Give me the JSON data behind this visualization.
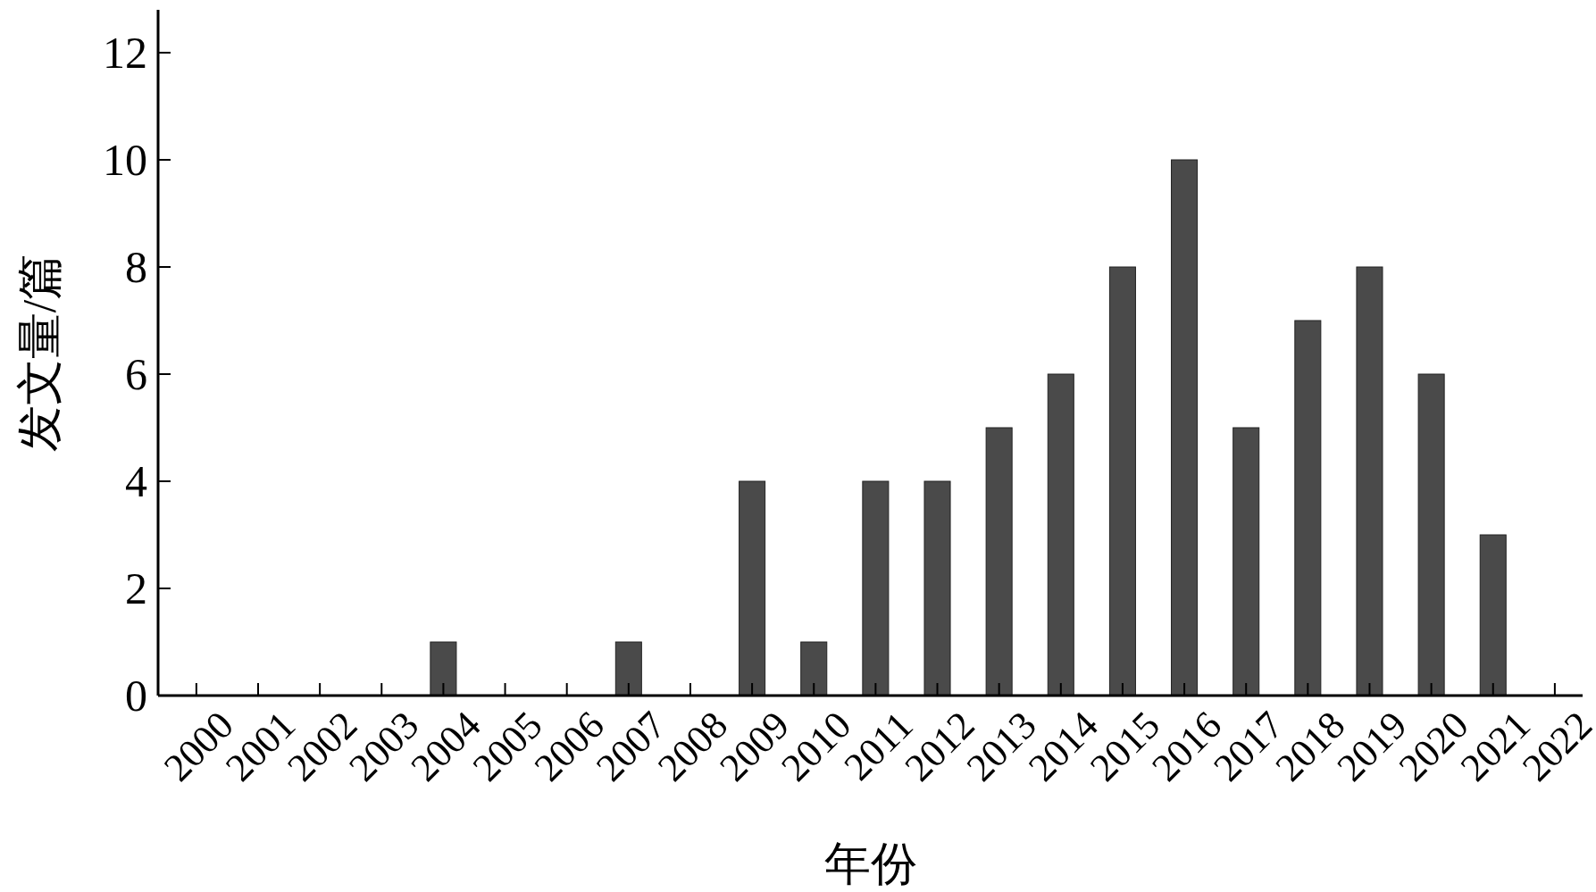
{
  "chart_data": {
    "type": "bar",
    "xlabel": "年份",
    "ylabel": "发文量/篇",
    "categories": [
      "2000",
      "2001",
      "2002",
      "2003",
      "2004",
      "2005",
      "2006",
      "2007",
      "2008",
      "2009",
      "2010",
      "2011",
      "2012",
      "2013",
      "2014",
      "2015",
      "2016",
      "2017",
      "2018",
      "2019",
      "2020",
      "2021",
      "2022"
    ],
    "values": [
      0,
      0,
      0,
      0,
      1,
      0,
      0,
      1,
      0,
      4,
      1,
      4,
      4,
      5,
      6,
      8,
      10,
      5,
      7,
      8,
      6,
      3,
      0
    ],
    "color": "#4a4a4a",
    "ylim": [
      0,
      12.8
    ],
    "yticks": [
      0,
      2,
      4,
      6,
      8,
      10,
      12
    ],
    "grid": false
  }
}
